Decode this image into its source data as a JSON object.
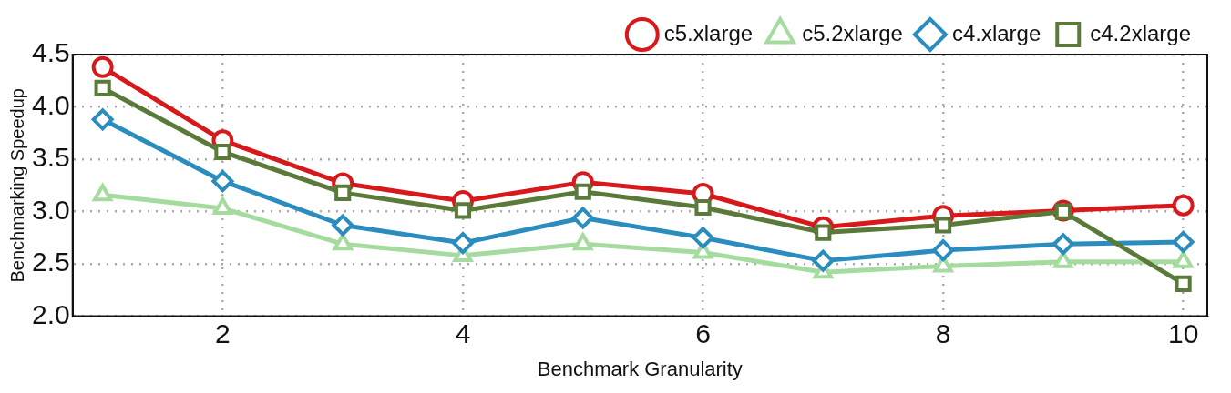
{
  "chart_data": {
    "type": "line",
    "xlabel": "Benchmark Granularity",
    "ylabel": "Benchmarking Speedup",
    "x": [
      1,
      2,
      3,
      4,
      5,
      6,
      7,
      8,
      9,
      10
    ],
    "xlim": [
      0.75,
      10.2
    ],
    "xticks": [
      2,
      4,
      6,
      8,
      10
    ],
    "ylim": [
      2.0,
      4.5
    ],
    "yticks": [
      {
        "value": 2,
        "label": "2.0"
      },
      2.5,
      {
        "value": 3,
        "label": "3.0"
      },
      3.5,
      {
        "value": 4,
        "label": "4.0"
      },
      4.5
    ],
    "grid": true,
    "legend": "top right",
    "series": [
      {
        "name": "c5.xlarge",
        "color": "#d7191c",
        "marker": "circle",
        "values": [
          4.38,
          3.68,
          3.27,
          3.1,
          3.28,
          3.17,
          2.85,
          2.96,
          3.01,
          3.06
        ]
      },
      {
        "name": "c5.2xlarge",
        "color": "#a6dba0",
        "marker": "triangle",
        "values": [
          3.16,
          3.03,
          2.69,
          2.58,
          2.69,
          2.61,
          2.42,
          2.48,
          2.52,
          2.52
        ]
      },
      {
        "name": "c4.xlarge",
        "color": "#2b8cbe",
        "marker": "diamond",
        "values": [
          3.88,
          3.29,
          2.87,
          2.7,
          2.94,
          2.75,
          2.53,
          2.63,
          2.69,
          2.71
        ]
      },
      {
        "name": "c4.2xlarge",
        "color": "#5a7a3a",
        "marker": "square",
        "values": [
          4.18,
          3.57,
          3.18,
          3.01,
          3.19,
          3.04,
          2.8,
          2.87,
          3.0,
          2.31
        ]
      }
    ]
  }
}
